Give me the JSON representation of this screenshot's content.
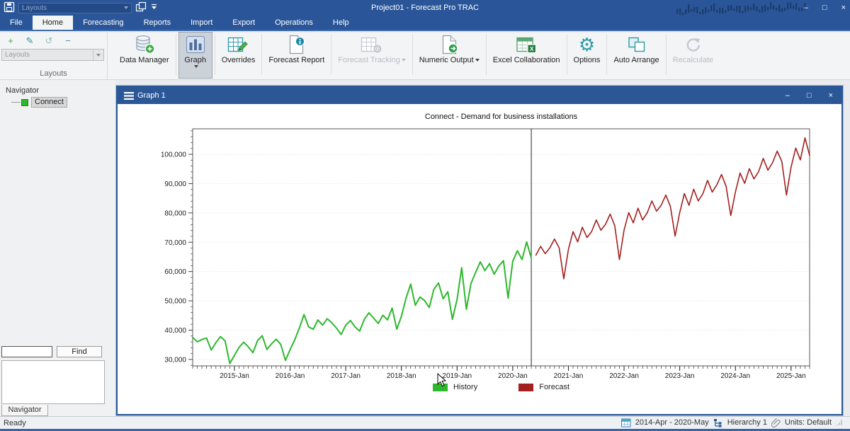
{
  "titlebar": {
    "title": "Project01 - Forecast Pro TRAC",
    "layouts_combo": "Layouts"
  },
  "menu": {
    "tabs": [
      {
        "label": "File"
      },
      {
        "label": "Home"
      },
      {
        "label": "Forecasting"
      },
      {
        "label": "Reports"
      },
      {
        "label": "Import"
      },
      {
        "label": "Export"
      },
      {
        "label": "Operations"
      },
      {
        "label": "Help"
      }
    ]
  },
  "ribbon": {
    "group_layouts": {
      "caption": "Layouts",
      "combo_placeholder": "Layouts"
    },
    "tools": {
      "add": "+",
      "edit": "✎",
      "undo": "↺",
      "remove": "−"
    },
    "buttons": [
      {
        "label": "Data Manager"
      },
      {
        "label": "Graph"
      },
      {
        "label": "Overrides"
      },
      {
        "label": "Forecast Report"
      },
      {
        "label": "Forecast Tracking"
      },
      {
        "label": "Numeric Output"
      },
      {
        "label": "Excel Collaboration"
      },
      {
        "label": "Options"
      },
      {
        "label": "Auto Arrange"
      },
      {
        "label": "Recalculate"
      }
    ]
  },
  "navigator": {
    "header": "Navigator",
    "tree_item": "Connect",
    "find_value": "",
    "find_button": "Find",
    "tab_label": "Navigator"
  },
  "graph_window": {
    "title": "Graph 1"
  },
  "chart_data": {
    "type": "line",
    "title": "Connect - Demand for business installations",
    "xlabel": "",
    "ylabel": "",
    "ylim": [
      27800,
      108700
    ],
    "y_ticks": [
      30000,
      40000,
      50000,
      60000,
      70000,
      80000,
      90000,
      100000
    ],
    "y_minor_step": 2000,
    "total_months": 134,
    "x_start": "2014-Apr",
    "x_end": "2025-May",
    "x_major_ticks": [
      {
        "index": 9,
        "label": "2015-Jan"
      },
      {
        "index": 21,
        "label": "2016-Jan"
      },
      {
        "index": 33,
        "label": "2017-Jan"
      },
      {
        "index": 45,
        "label": "2018-Jan"
      },
      {
        "index": 57,
        "label": "2019-Jan"
      },
      {
        "index": 69,
        "label": "2020-Jan"
      },
      {
        "index": 81,
        "label": "2021-Jan"
      },
      {
        "index": 93,
        "label": "2022-Jan"
      },
      {
        "index": 105,
        "label": "2023-Jan"
      },
      {
        "index": 117,
        "label": "2024-Jan"
      },
      {
        "index": 129,
        "label": "2025-Jan"
      }
    ],
    "separator_index": 73,
    "grid": true,
    "legend_position": "bottom",
    "series": [
      {
        "name": "History",
        "color": "#2eb82e",
        "start_index": 0,
        "values": [
          37500,
          36000,
          36800,
          37300,
          33200,
          35700,
          37800,
          36300,
          28600,
          31400,
          34100,
          35900,
          34300,
          32300,
          36500,
          38100,
          33400,
          35300,
          36900,
          35100,
          29700,
          33300,
          36700,
          40700,
          45300,
          41100,
          40300,
          43500,
          41700,
          43900,
          42500,
          40700,
          38500,
          41700,
          43300,
          41100,
          39700,
          43700,
          45900,
          44100,
          42300,
          45100,
          43500,
          47500,
          40300,
          44700,
          50900,
          55700,
          48500,
          51300,
          50100,
          47700,
          53900,
          56100,
          50700,
          53100,
          43700,
          50500,
          61300,
          47100,
          55900,
          59700,
          63300,
          60300,
          62700,
          59100,
          61900,
          63700,
          50900,
          63500,
          67100,
          64100,
          70100,
          64600
        ]
      },
      {
        "name": "Forecast",
        "color": "#a32020",
        "start_index": 74,
        "values": [
          65600,
          68600,
          66100,
          68100,
          71100,
          68100,
          57500,
          67600,
          73600,
          70100,
          75100,
          71600,
          73600,
          77600,
          74100,
          76100,
          79600,
          75600,
          64100,
          74100,
          80100,
          76600,
          81600,
          77600,
          80100,
          84100,
          80600,
          82600,
          86100,
          82100,
          72100,
          80100,
          86600,
          82600,
          88100,
          84100,
          86600,
          91100,
          87100,
          89600,
          93100,
          89100,
          79100,
          87100,
          93600,
          90100,
          95100,
          91600,
          94100,
          98600,
          94600,
          97100,
          101100,
          97600,
          86100,
          95600,
          102100,
          98100,
          105600,
          99600
        ]
      }
    ]
  },
  "status_bar": {
    "ready": "Ready",
    "date_range": "2014-Apr - 2020-May",
    "hierarchy": "Hierarchy 1",
    "units": "Units: Default"
  },
  "icons": {
    "minimize": "–",
    "maximize": "□",
    "close": "×",
    "gear": "⚙"
  },
  "colors": {
    "titlebar_blue": "#2a5699",
    "window_blue": "#2b5797",
    "history_green": "#2eb82e",
    "forecast_red": "#a32020",
    "icon_teal": "#2e9aa8"
  }
}
